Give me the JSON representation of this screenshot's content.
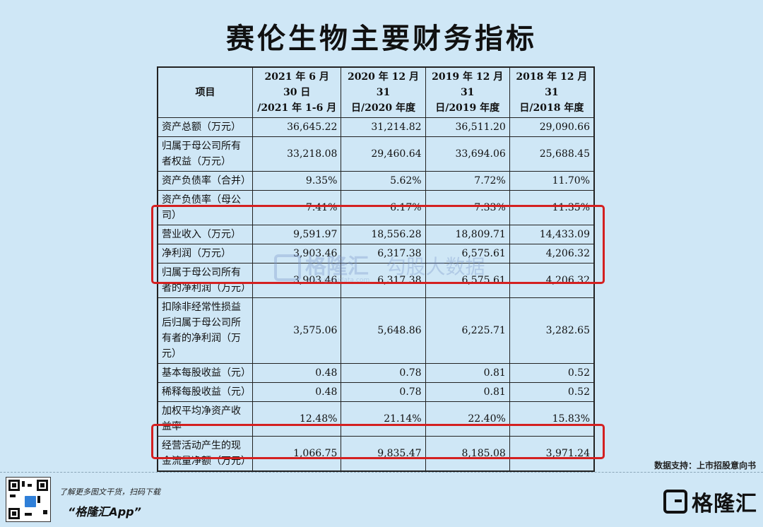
{
  "title": "赛伦生物主要财务指标",
  "table": {
    "headers": [
      {
        "line1": "项目",
        "line2": ""
      },
      {
        "line1": "2021 年 6 月 30 日",
        "line2": "/2021 年 1-6 月"
      },
      {
        "line1": "2020 年 12 月 31",
        "line2": "日/2020 年度"
      },
      {
        "line1": "2019 年 12 月 31",
        "line2": "日/2019 年度"
      },
      {
        "line1": "2018 年 12 月 31",
        "line2": "日/2018 年度"
      }
    ],
    "rows": [
      {
        "label": "资产总额（万元）",
        "values": [
          "36,645.22",
          "31,214.82",
          "36,511.20",
          "29,090.66"
        ]
      },
      {
        "label": "归属于母公司所有者权益（万元）",
        "values": [
          "33,218.08",
          "29,460.64",
          "33,694.06",
          "25,688.45"
        ]
      },
      {
        "label": "资产负债率（合并）",
        "values": [
          "9.35%",
          "5.62%",
          "7.72%",
          "11.70%"
        ]
      },
      {
        "label": "资产负债率（母公司）",
        "values": [
          "7.41%",
          "6.17%",
          "7.33%",
          "11.35%"
        ]
      },
      {
        "label": "营业收入（万元）",
        "values": [
          "9,591.97",
          "18,556.28",
          "18,809.71",
          "14,433.09"
        ]
      },
      {
        "label": "净利润（万元）",
        "values": [
          "3,903.46",
          "6,317.38",
          "6,575.61",
          "4,206.32"
        ]
      },
      {
        "label": "归属于母公司所有者的净利润（万元）",
        "values": [
          "3,903.46",
          "6,317.38",
          "6,575.61",
          "4,206.32"
        ]
      },
      {
        "label": "扣除非经常性损益后归属于母公司所有者的净利润（万元）",
        "values": [
          "3,575.06",
          "5,648.86",
          "6,225.71",
          "3,282.65"
        ]
      },
      {
        "label": "基本每股收益（元）",
        "values": [
          "0.48",
          "0.78",
          "0.81",
          "0.52"
        ]
      },
      {
        "label": "稀释每股收益（元）",
        "values": [
          "0.48",
          "0.78",
          "0.81",
          "0.52"
        ]
      },
      {
        "label": "加权平均净资产收益率",
        "values": [
          "12.48%",
          "21.14%",
          "22.40%",
          "15.83%"
        ]
      },
      {
        "label": "经营活动产生的现金流量净额（万元）",
        "values": [
          "1,066.75",
          "9,835.47",
          "8,185.08",
          "3,971.24"
        ]
      }
    ]
  },
  "watermark": {
    "text1": "格隆汇",
    "text2": "勾股大数据",
    "url": "www.gogudata.com"
  },
  "source": "数据支持：上市招股意向书",
  "footer": {
    "tagline": "了解更多图文干货，扫码下载",
    "app_name": "“格隆汇App”",
    "brand": "格隆汇"
  },
  "colors": {
    "background": "#cfe7f6",
    "highlight": "#d42020"
  }
}
